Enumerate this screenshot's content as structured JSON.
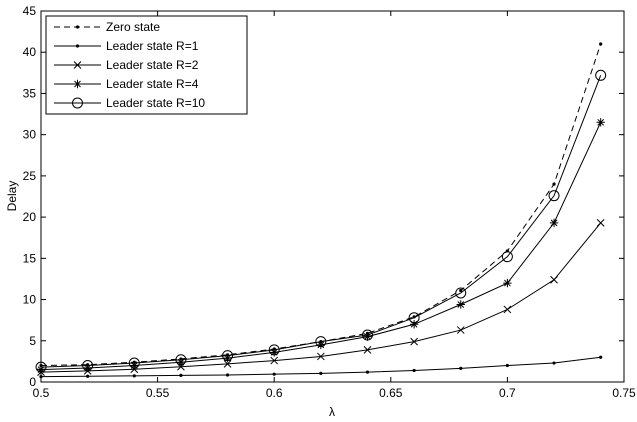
{
  "chart_data": {
    "type": "line",
    "xlabel": "λ",
    "ylabel": "Delay",
    "xlim": [
      0.5,
      0.75
    ],
    "ylim": [
      0,
      45
    ],
    "xticks": [
      "0.5",
      "0.55",
      "0.6",
      "0.65",
      "0.7",
      "0.75"
    ],
    "yticks": [
      "0",
      "5",
      "10",
      "15",
      "20",
      "25",
      "30",
      "35",
      "40",
      "45"
    ],
    "grid": false,
    "legend_position": "top-left",
    "x": [
      0.5,
      0.52,
      0.54,
      0.56,
      0.58,
      0.6,
      0.62,
      0.64,
      0.66,
      0.68,
      0.7,
      0.72,
      0.74
    ],
    "series": [
      {
        "name": "Zero state",
        "line": "dashed",
        "marker": "dot",
        "values": [
          2.0,
          2.1,
          2.4,
          2.8,
          3.3,
          4.0,
          4.9,
          5.9,
          7.9,
          11.1,
          15.9,
          24.0,
          41.0
        ]
      },
      {
        "name": "Leader state R=1",
        "line": "solid",
        "marker": "dot",
        "values": [
          0.65,
          0.7,
          0.75,
          0.8,
          0.85,
          0.95,
          1.05,
          1.2,
          1.4,
          1.65,
          2.0,
          2.3,
          3.0
        ]
      },
      {
        "name": "Leader state R=2",
        "line": "solid",
        "marker": "x",
        "values": [
          1.2,
          1.35,
          1.55,
          1.85,
          2.2,
          2.6,
          3.1,
          3.9,
          4.9,
          6.3,
          8.8,
          12.4,
          19.3
        ]
      },
      {
        "name": "Leader state R=4",
        "line": "solid",
        "marker": "star",
        "values": [
          1.5,
          1.7,
          2.0,
          2.4,
          2.9,
          3.6,
          4.5,
          5.5,
          7.0,
          9.4,
          12.0,
          19.3,
          31.5
        ]
      },
      {
        "name": "Leader state R=10",
        "line": "solid",
        "marker": "circle",
        "values": [
          1.8,
          2.0,
          2.3,
          2.7,
          3.2,
          3.9,
          4.9,
          5.7,
          7.8,
          10.8,
          15.2,
          22.6,
          37.2
        ]
      }
    ]
  }
}
